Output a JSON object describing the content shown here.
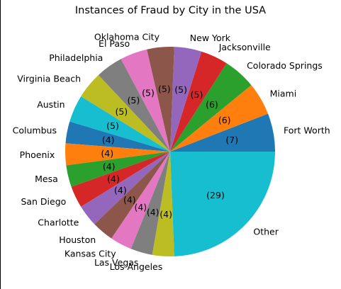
{
  "chart_data": {
    "type": "pie",
    "title": "Instances of Fraud by City in the USA",
    "start_angle_deg": 0,
    "direction": "counterclockwise",
    "slices": [
      {
        "label": "Fort Worth",
        "value": 7,
        "value_label": "(7)",
        "color": "#1f77b4"
      },
      {
        "label": "Miami",
        "value": 6,
        "value_label": "(6)",
        "color": "#ff7f0e"
      },
      {
        "label": "Colorado Springs",
        "value": 6,
        "value_label": "(6)",
        "color": "#2ca02c"
      },
      {
        "label": "Jacksonville",
        "value": 5,
        "value_label": "(5)",
        "color": "#d62728"
      },
      {
        "label": "New York",
        "value": 5,
        "value_label": "(5)",
        "color": "#9467bd"
      },
      {
        "label": "Oklahoma City",
        "value": 5,
        "value_label": "(5)",
        "color": "#8c564b"
      },
      {
        "label": "El Paso",
        "value": 5,
        "value_label": "(5)",
        "color": "#e377c2"
      },
      {
        "label": "Philadelphia",
        "value": 5,
        "value_label": "(5)",
        "color": "#7f7f7f"
      },
      {
        "label": "Virginia Beach",
        "value": 5,
        "value_label": "(5)",
        "color": "#bcbd22"
      },
      {
        "label": "Austin",
        "value": 5,
        "value_label": "(5)",
        "color": "#17becf"
      },
      {
        "label": "Columbus",
        "value": 4,
        "value_label": "(4)",
        "color": "#1f77b4"
      },
      {
        "label": "Phoenix",
        "value": 4,
        "value_label": "(4)",
        "color": "#ff7f0e"
      },
      {
        "label": "Mesa",
        "value": 4,
        "value_label": "(4)",
        "color": "#2ca02c"
      },
      {
        "label": "San Diego",
        "value": 4,
        "value_label": "(4)",
        "color": "#d62728"
      },
      {
        "label": "Charlotte",
        "value": 4,
        "value_label": "(4)",
        "color": "#9467bd"
      },
      {
        "label": "Houston",
        "value": 4,
        "value_label": "(4)",
        "color": "#8c564b"
      },
      {
        "label": "Kansas City",
        "value": 4,
        "value_label": "(4)",
        "color": "#e377c2"
      },
      {
        "label": "Las Vegas",
        "value": 4,
        "value_label": "(4)",
        "color": "#7f7f7f"
      },
      {
        "label": "Los Angeles",
        "value": 4,
        "value_label": "(4)",
        "color": "#bcbd22"
      },
      {
        "label": "Other",
        "value": 29,
        "value_label": "(29)",
        "color": "#17becf"
      }
    ]
  }
}
